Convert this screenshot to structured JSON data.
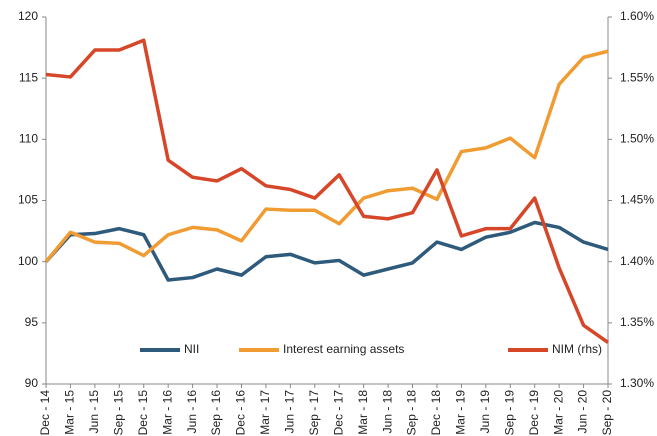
{
  "chart_data": {
    "type": "line",
    "categories": [
      "Dec - 14",
      "Mar - 15",
      "Jun - 15",
      "Sep - 15",
      "Dec - 15",
      "Mar - 16",
      "Jun - 16",
      "Sep - 16",
      "Dec - 16",
      "Mar - 17",
      "Jun - 17",
      "Sep - 17",
      "Dec - 17",
      "Mar - 18",
      "Jun - 18",
      "Sep - 18",
      "Dec - 18",
      "Mar - 19",
      "Jun - 19",
      "Sep - 19",
      "Dec - 19",
      "Mar - 20",
      "Jun - 20",
      "Sep - 20"
    ],
    "series": [
      {
        "name": "NII",
        "color": "#2e5a7c",
        "values": [
          100,
          102.2,
          102.3,
          102.7,
          102.2,
          98.5,
          98.7,
          99.4,
          98.9,
          100.4,
          100.6,
          99.9,
          100.1,
          98.9,
          99.4,
          99.9,
          101.6,
          101.0,
          102.0,
          102.4,
          103.2,
          102.8,
          101.6,
          101.0
        ]
      },
      {
        "name": "Interest earning assets",
        "color": "#f09c33",
        "values": [
          100,
          102.4,
          101.6,
          101.5,
          100.5,
          102.2,
          102.8,
          102.6,
          101.7,
          104.3,
          104.2,
          104.2,
          103.1,
          105.2,
          105.8,
          106.0,
          105.1,
          109.0,
          109.3,
          110.1,
          108.5,
          114.5,
          116.7,
          117.2
        ]
      },
      {
        "name": "NIM (rhs)",
        "color": "#d6472a",
        "axis": "y2",
        "values": [
          1.553,
          1.551,
          1.573,
          1.573,
          1.581,
          1.483,
          1.469,
          1.466,
          1.476,
          1.462,
          1.459,
          1.452,
          1.471,
          1.437,
          1.435,
          1.44,
          1.475,
          1.421,
          1.427,
          1.427,
          1.452,
          1.395,
          1.348,
          1.334
        ]
      }
    ],
    "ylim": [
      90,
      120
    ],
    "yticks": [
      90,
      95,
      100,
      105,
      110,
      115,
      120
    ],
    "y2lim": [
      1.3,
      1.6
    ],
    "y2ticks": [
      {
        "value": 1.3,
        "label": "1.30%"
      },
      {
        "value": 1.35,
        "label": "1.35%"
      },
      {
        "value": 1.4,
        "label": "1.40%"
      },
      {
        "value": 1.45,
        "label": "1.45%"
      },
      {
        "value": 1.5,
        "label": "1.50%"
      },
      {
        "value": 1.55,
        "label": "1.55%"
      },
      {
        "value": 1.6,
        "label": "1.60%"
      }
    ],
    "legend": "bottom",
    "grid": false
  }
}
